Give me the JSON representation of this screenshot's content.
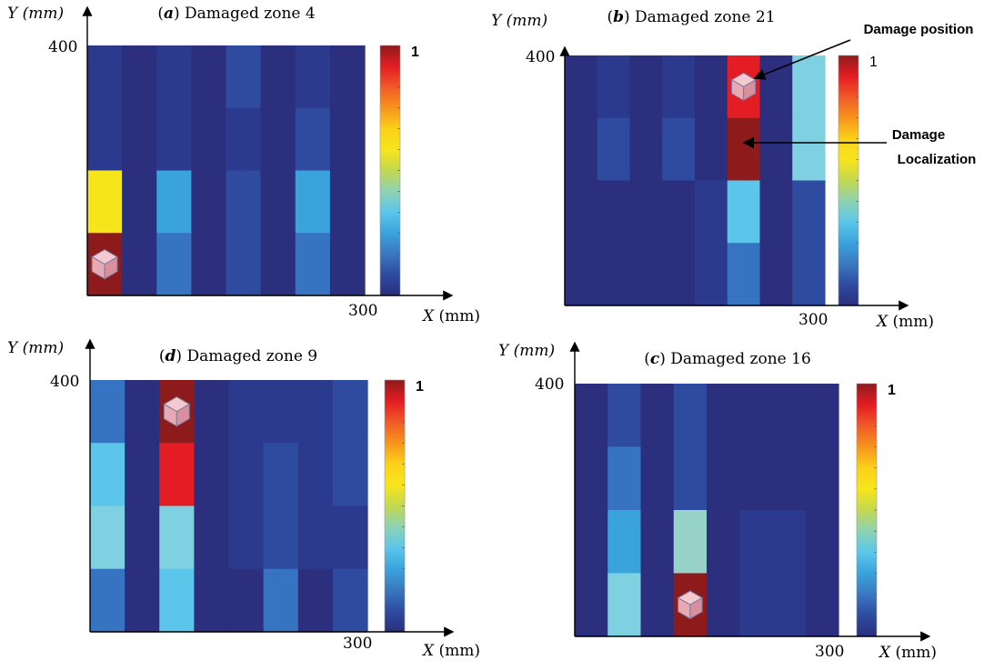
{
  "colors": {
    "0": "#2b2f7e",
    "1": "#2c3a8e",
    "2": "#2e4ba0",
    "3": "#3673c0",
    "4": "#3aa3dc",
    "5": "#5cc6ea",
    "6": "#7fd0e0",
    "7": "#96d2c8",
    "8": "#f7e51c",
    "9": "#e41c23",
    "10": "#8e1b1b",
    "colorbar_stops": [
      "#8e1b1b",
      "#e41c23",
      "#f05a28",
      "#f7941d",
      "#fbd11a",
      "#f7e51c",
      "#c3d850",
      "#8ed2b4",
      "#5cc6ea",
      "#3aa3dc",
      "#3a78c0",
      "#2e4ba0",
      "#2b2f7e"
    ]
  },
  "annotations": {
    "damage_position": "Damage position",
    "damage_localization_1": "Damage",
    "damage_localization_2": "Localization"
  },
  "chart_data": [
    {
      "type": "heatmap",
      "panel": "a",
      "title_letter": "a",
      "title_text": "Damaged zone 4",
      "ylabel_var": "Y",
      "ylabel_unit": "(mm)",
      "xlabel_var": "X",
      "xlabel_unit": "(mm)",
      "ytick": "400",
      "xtick": "300",
      "colorbar_max_label": "1",
      "xlim": [
        0,
        300
      ],
      "ylim": [
        0,
        400
      ],
      "grid_cols": 8,
      "grid_rows": 4,
      "cells": [
        [
          1,
          0,
          1,
          0,
          2,
          0,
          1,
          0
        ],
        [
          1,
          0,
          1,
          0,
          1,
          0,
          2,
          0
        ],
        [
          8,
          0,
          4,
          0,
          2,
          0,
          4,
          0
        ],
        [
          10,
          0,
          3,
          0,
          2,
          0,
          3,
          0
        ]
      ],
      "damage_marker": [
        0,
        3
      ]
    },
    {
      "type": "heatmap",
      "panel": "b",
      "title_letter": "b",
      "title_text": "Damaged zone 21",
      "ylabel_var": "Y",
      "ylabel_unit": "(mm)",
      "xlabel_var": "X",
      "xlabel_unit": "(mm)",
      "ytick": "400",
      "xtick": "300",
      "colorbar_max_label": "1",
      "xlim": [
        0,
        300
      ],
      "ylim": [
        0,
        400
      ],
      "grid_cols": 8,
      "grid_rows": 4,
      "cells": [
        [
          0,
          1,
          0,
          1,
          0,
          9,
          0,
          6
        ],
        [
          0,
          2,
          0,
          2,
          0,
          10,
          0,
          6
        ],
        [
          0,
          0,
          0,
          0,
          1,
          5,
          0,
          2
        ],
        [
          0,
          0,
          0,
          0,
          1,
          3,
          0,
          2
        ]
      ],
      "damage_marker": [
        5,
        0
      ]
    },
    {
      "type": "heatmap",
      "panel": "d",
      "title_letter": "d",
      "title_text": "Damaged zone 9",
      "ylabel_var": "Y",
      "ylabel_unit": "(mm)",
      "xlabel_var": "X",
      "xlabel_unit": "(mm)",
      "ytick": "400",
      "xtick": "300",
      "colorbar_max_label": "1",
      "xlim": [
        0,
        300
      ],
      "ylim": [
        0,
        400
      ],
      "grid_cols": 8,
      "grid_rows": 4,
      "cells": [
        [
          3,
          0,
          10,
          0,
          1,
          1,
          1,
          2
        ],
        [
          5,
          0,
          9,
          0,
          1,
          2,
          1,
          2
        ],
        [
          6,
          0,
          6,
          0,
          1,
          2,
          1,
          1
        ],
        [
          3,
          0,
          5,
          0,
          0,
          3,
          0,
          2
        ]
      ],
      "damage_marker": [
        2,
        0
      ]
    },
    {
      "type": "heatmap",
      "panel": "c",
      "title_letter": "c",
      "title_text": "Damaged zone 16",
      "ylabel_var": "Y",
      "ylabel_unit": "(mm)",
      "xlabel_var": "X",
      "xlabel_unit": "(mm)",
      "ytick": "400",
      "xtick": "300",
      "colorbar_max_label": "1",
      "xlim": [
        0,
        300
      ],
      "ylim": [
        0,
        400
      ],
      "grid_cols": 8,
      "grid_rows": 4,
      "cells": [
        [
          0,
          2,
          0,
          2,
          0,
          0,
          0,
          0
        ],
        [
          0,
          3,
          0,
          2,
          0,
          0,
          0,
          0
        ],
        [
          0,
          4,
          0,
          7,
          0,
          1,
          1,
          0
        ],
        [
          0,
          6,
          0,
          10,
          0,
          1,
          1,
          0
        ]
      ],
      "damage_marker": [
        3,
        3
      ]
    }
  ]
}
